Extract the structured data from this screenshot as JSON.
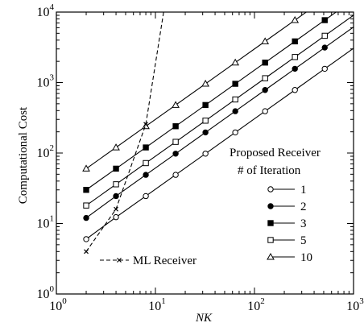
{
  "chart_data": {
    "type": "line",
    "xlabel": "NK",
    "ylabel": "Computational Cost",
    "xscale": "log",
    "yscale": "log",
    "xlim": [
      1,
      1000
    ],
    "ylim": [
      1,
      10000
    ],
    "x_ticks": [
      {
        "base": "10",
        "exp": "0",
        "value": 1
      },
      {
        "base": "10",
        "exp": "1",
        "value": 10
      },
      {
        "base": "10",
        "exp": "2",
        "value": 100
      },
      {
        "base": "10",
        "exp": "3",
        "value": 1000
      }
    ],
    "y_ticks": [
      {
        "base": "10",
        "exp": "0",
        "value": 1
      },
      {
        "base": "10",
        "exp": "1",
        "value": 10
      },
      {
        "base": "10",
        "exp": "2",
        "value": 100
      },
      {
        "base": "10",
        "exp": "3",
        "value": 1000
      },
      {
        "base": "10",
        "exp": "4",
        "value": 10000
      }
    ],
    "legend": {
      "title_line1": "Proposed Receiver",
      "title_line2": "# of Iteration",
      "placement": "right"
    },
    "series": [
      {
        "name": "1",
        "marker": "circle-open",
        "dashed": false,
        "x": [
          2,
          4,
          8,
          16,
          32,
          64,
          128,
          256,
          512
        ],
        "y": [
          6,
          12.3,
          24.5,
          49,
          98,
          196,
          392,
          784,
          1568
        ]
      },
      {
        "name": "2",
        "marker": "circle-filled",
        "dashed": false,
        "x": [
          2,
          4,
          8,
          16,
          32,
          64,
          128,
          256,
          512
        ],
        "y": [
          12,
          24.5,
          49,
          98,
          196,
          392,
          784,
          1568,
          3136
        ]
      },
      {
        "name": "3",
        "marker": "square-filled",
        "dashed": false,
        "x": [
          2,
          4,
          8,
          16,
          32,
          64,
          128,
          256,
          512
        ],
        "y": [
          30,
          60,
          120,
          240,
          480,
          960,
          1920,
          3840,
          7680
        ]
      },
      {
        "name": "5",
        "marker": "square-open",
        "dashed": false,
        "x": [
          2,
          4,
          8,
          16,
          32,
          64,
          128,
          256,
          512
        ],
        "y": [
          18,
          36,
          72,
          144,
          288,
          576,
          1152,
          2304,
          4608
        ]
      },
      {
        "name": "10",
        "marker": "triangle-open",
        "dashed": false,
        "x": [
          2,
          4,
          8,
          16,
          32,
          64,
          128,
          256
        ],
        "y": [
          60,
          120,
          240,
          480,
          960,
          1920,
          3840,
          7680
        ]
      }
    ],
    "ml_series": {
      "name": "ML Receiver",
      "marker": "x",
      "dashed": true,
      "x": [
        2,
        4,
        8,
        12.1
      ],
      "y": [
        4,
        16,
        256,
        10000
      ]
    }
  }
}
